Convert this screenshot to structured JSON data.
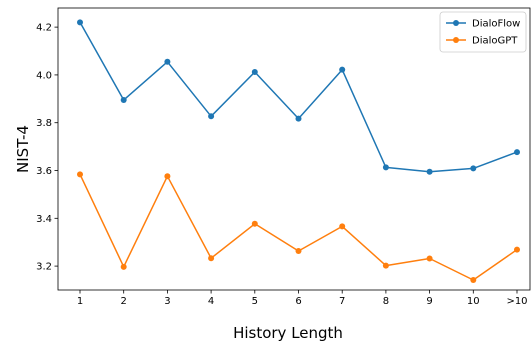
{
  "chart_data": {
    "type": "line",
    "title": "",
    "xlabel": "History Length",
    "ylabel": "NIST-4",
    "categories": [
      "1",
      "2",
      "3",
      "4",
      "5",
      "6",
      "7",
      "8",
      "9",
      "10",
      ">10"
    ],
    "ylim": [
      3.1,
      4.28
    ],
    "yticks": [
      "3.2",
      "3.4",
      "3.6",
      "3.8",
      "4.0",
      "4.2"
    ],
    "grid": false,
    "legend_position": "top-right",
    "series": [
      {
        "name": "DialoFlow",
        "color": "#1f77b4",
        "values": [
          4.22,
          3.895,
          4.055,
          3.827,
          4.012,
          3.817,
          4.022,
          3.613,
          3.595,
          3.609,
          3.677
        ]
      },
      {
        "name": "DialoGPT",
        "color": "#ff7f0e",
        "values": [
          3.584,
          3.197,
          3.576,
          3.233,
          3.377,
          3.263,
          3.366,
          3.202,
          3.232,
          3.142,
          3.269
        ]
      }
    ]
  }
}
